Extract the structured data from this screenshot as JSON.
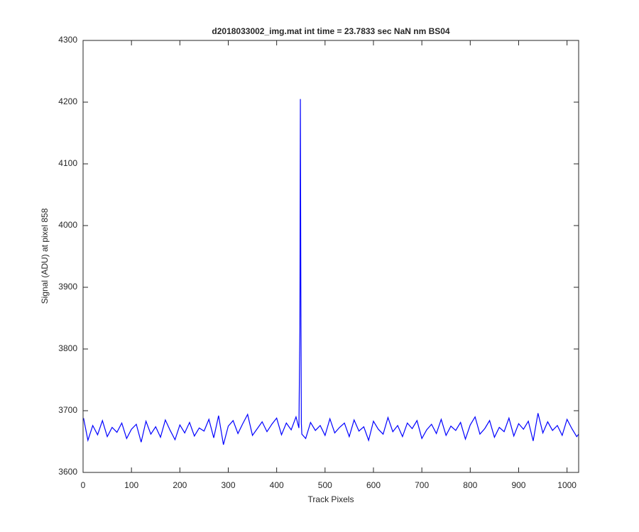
{
  "chart_data": {
    "type": "line",
    "title": "d2018033002_img.mat int time = 23.7833 sec  NaN nm BS04",
    "x_label": "Track Pixels",
    "y_label": "Signal (ADU) at pixel 858",
    "xlim": [
      0,
      1024
    ],
    "xticks": [
      0,
      100,
      200,
      300,
      400,
      500,
      600,
      700,
      800,
      900,
      1000
    ],
    "ylim": [
      3600,
      4300
    ],
    "yticks": [
      3600,
      3700,
      3800,
      3900,
      4000,
      4100,
      4200,
      4300
    ],
    "grid": false,
    "series": [
      {
        "color": "#0000ff",
        "x": [
          1,
          10,
          20,
          30,
          40,
          50,
          60,
          70,
          80,
          90,
          100,
          110,
          120,
          130,
          140,
          150,
          160,
          170,
          180,
          190,
          200,
          210,
          220,
          230,
          240,
          250,
          260,
          270,
          280,
          290,
          300,
          310,
          320,
          330,
          340,
          350,
          360,
          370,
          380,
          390,
          400,
          410,
          420,
          430,
          440,
          446,
          448,
          449,
          450,
          451,
          452,
          460,
          470,
          480,
          490,
          500,
          510,
          520,
          530,
          540,
          550,
          560,
          570,
          580,
          590,
          600,
          610,
          620,
          630,
          640,
          650,
          660,
          670,
          680,
          690,
          700,
          710,
          720,
          730,
          740,
          750,
          760,
          770,
          780,
          790,
          800,
          810,
          820,
          830,
          840,
          850,
          860,
          870,
          880,
          890,
          900,
          910,
          920,
          930,
          940,
          950,
          960,
          970,
          980,
          990,
          1000,
          1010,
          1020,
          1024
        ],
        "values": [
          3688,
          3652,
          3676,
          3661,
          3684,
          3658,
          3673,
          3665,
          3680,
          3655,
          3670,
          3678,
          3649,
          3683,
          3662,
          3674,
          3657,
          3685,
          3668,
          3653,
          3677,
          3664,
          3681,
          3659,
          3672,
          3667,
          3686,
          3656,
          3692,
          3645,
          3675,
          3684,
          3663,
          3679,
          3694,
          3660,
          3671,
          3682,
          3666,
          3678,
          3688,
          3661,
          3680,
          3669,
          3690,
          3672,
          3835,
          4205,
          3905,
          3680,
          3662,
          3655,
          3681,
          3668,
          3676,
          3660,
          3687,
          3664,
          3673,
          3680,
          3658,
          3685,
          3667,
          3674,
          3652,
          3683,
          3670,
          3662,
          3689,
          3666,
          3676,
          3658,
          3680,
          3671,
          3684,
          3655,
          3669,
          3678,
          3663,
          3686,
          3660,
          3675,
          3668,
          3681,
          3654,
          3677,
          3690,
          3662,
          3671,
          3684,
          3657,
          3673,
          3666,
          3688,
          3659,
          3679,
          3670,
          3683,
          3651,
          3696,
          3664,
          3682,
          3668,
          3676,
          3660,
          3686,
          3671,
          3658,
          3662
        ]
      }
    ]
  }
}
